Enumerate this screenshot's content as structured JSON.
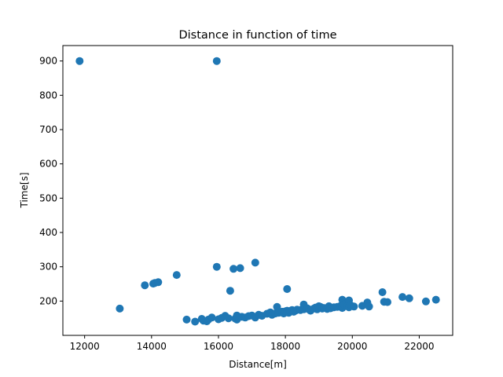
{
  "chart_data": {
    "type": "scatter",
    "title": "Distance in function of time",
    "xlabel": "Distance[m]",
    "ylabel": "Time[s]",
    "xlim": [
      11350,
      23000
    ],
    "ylim": [
      100,
      945
    ],
    "xticks": [
      12000,
      14000,
      16000,
      18000,
      20000,
      22000
    ],
    "yticks": [
      200,
      300,
      400,
      500,
      600,
      700,
      800,
      900
    ],
    "grid": false,
    "legend": "none",
    "marker_color": "#1f77b4",
    "series": [
      {
        "points": [
          [
            11850,
            900
          ],
          [
            15950,
            900
          ],
          [
            13050,
            178
          ],
          [
            13800,
            246
          ],
          [
            14050,
            251
          ],
          [
            14100,
            253
          ],
          [
            14200,
            255
          ],
          [
            14750,
            276
          ],
          [
            15950,
            300
          ],
          [
            16450,
            294
          ],
          [
            16650,
            296
          ],
          [
            17100,
            312
          ],
          [
            16350,
            230
          ],
          [
            18050,
            235
          ],
          [
            20900,
            226
          ],
          [
            15050,
            146
          ],
          [
            15300,
            140
          ],
          [
            15500,
            148
          ],
          [
            15550,
            143
          ],
          [
            15650,
            141
          ],
          [
            15700,
            146
          ],
          [
            15800,
            152
          ],
          [
            16000,
            147
          ],
          [
            16100,
            151
          ],
          [
            16200,
            157
          ],
          [
            16300,
            150
          ],
          [
            16500,
            149
          ],
          [
            16550,
            146
          ],
          [
            16550,
            158
          ],
          [
            16700,
            154
          ],
          [
            16800,
            152
          ],
          [
            16900,
            156
          ],
          [
            17000,
            158
          ],
          [
            17100,
            152
          ],
          [
            17200,
            160
          ],
          [
            17300,
            157
          ],
          [
            17450,
            163
          ],
          [
            17550,
            167
          ],
          [
            17600,
            160
          ],
          [
            17700,
            164
          ],
          [
            17750,
            183
          ],
          [
            17800,
            166
          ],
          [
            17900,
            169
          ],
          [
            17950,
            164
          ],
          [
            18000,
            170
          ],
          [
            18050,
            172
          ],
          [
            18100,
            166
          ],
          [
            18150,
            170
          ],
          [
            18200,
            174
          ],
          [
            18250,
            169
          ],
          [
            18300,
            172
          ],
          [
            18350,
            175
          ],
          [
            18450,
            174
          ],
          [
            18550,
            176
          ],
          [
            18550,
            190
          ],
          [
            18650,
            179
          ],
          [
            18700,
            176
          ],
          [
            18750,
            172
          ],
          [
            18850,
            178
          ],
          [
            18900,
            181
          ],
          [
            18950,
            176
          ],
          [
            19000,
            185
          ],
          [
            19050,
            183
          ],
          [
            19100,
            178
          ],
          [
            19150,
            180
          ],
          [
            19250,
            177
          ],
          [
            19300,
            185
          ],
          [
            19350,
            179
          ],
          [
            19450,
            182
          ],
          [
            19550,
            183
          ],
          [
            19650,
            186
          ],
          [
            19700,
            180
          ],
          [
            19700,
            204
          ],
          [
            19750,
            190
          ],
          [
            19850,
            185
          ],
          [
            19900,
            182
          ],
          [
            19900,
            202
          ],
          [
            19950,
            188
          ],
          [
            20050,
            184
          ],
          [
            20300,
            186
          ],
          [
            20450,
            196
          ],
          [
            20500,
            184
          ],
          [
            20950,
            198
          ],
          [
            21050,
            197
          ],
          [
            21500,
            212
          ],
          [
            21700,
            208
          ],
          [
            22200,
            199
          ],
          [
            22500,
            204
          ]
        ]
      }
    ]
  }
}
